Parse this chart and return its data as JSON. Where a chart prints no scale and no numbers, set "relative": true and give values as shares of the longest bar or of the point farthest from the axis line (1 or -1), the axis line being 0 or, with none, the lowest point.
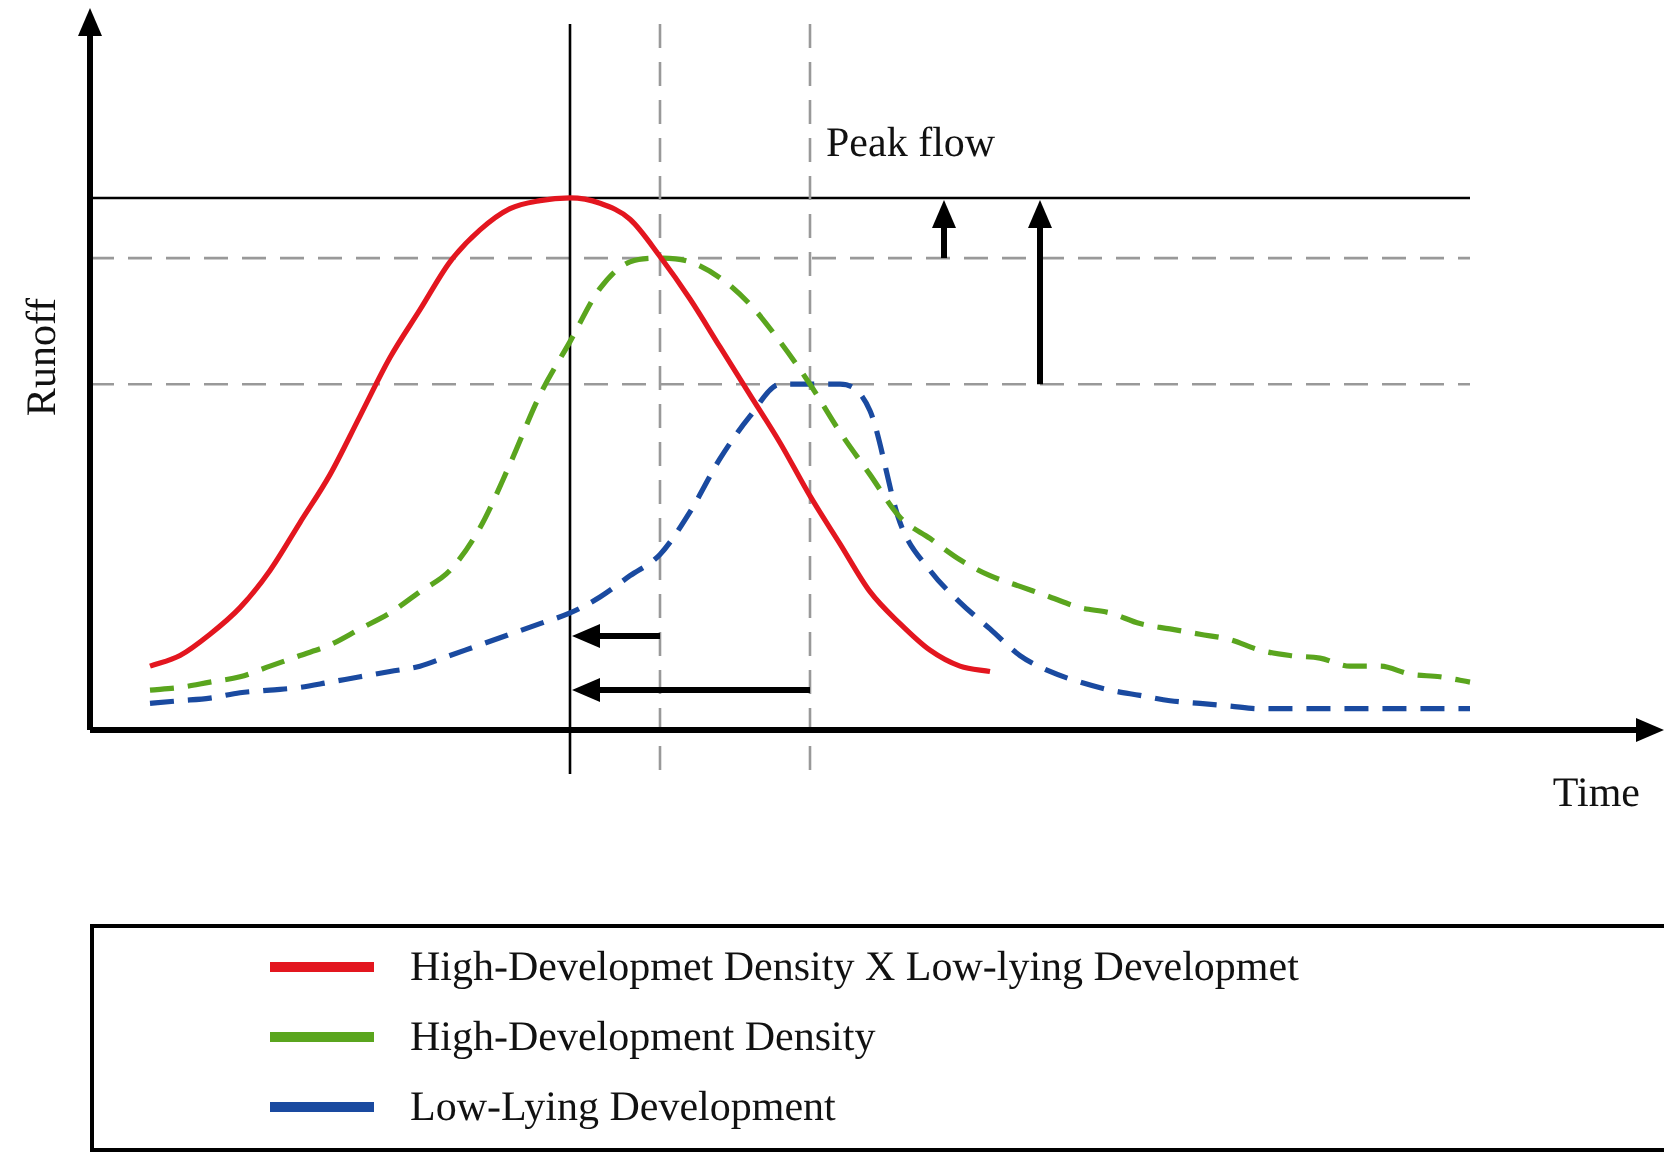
{
  "chart_data": {
    "type": "line",
    "relative": true,
    "xlabel": "Time",
    "ylabel": "Runoff",
    "annotations": [
      "Peak flow"
    ],
    "legend": "bottom",
    "grid": false,
    "marker": "none",
    "tick_labels": false,
    "categories": [
      null,
      null,
      null,
      null,
      null,
      null,
      null,
      null,
      null,
      null,
      null,
      null,
      null,
      null,
      null,
      null,
      null,
      null,
      null,
      null,
      null,
      null,
      null,
      null,
      null,
      null,
      null,
      null,
      null,
      null,
      null,
      null,
      null,
      null,
      null,
      null,
      null,
      null,
      null,
      null,
      null,
      null,
      null,
      null,
      null,
      null,
      null
    ],
    "series": [
      {
        "name": "High-Developmet Density X Low-lying Developmet",
        "color": "#e3161f",
        "line_style": "solid",
        "values": [
          null,
          null,
          0.12,
          0.14,
          0.18,
          0.23,
          0.3,
          0.39,
          0.48,
          0.59,
          0.7,
          0.79,
          0.88,
          0.94,
          0.98,
          0.995,
          1.0,
          0.99,
          0.96,
          0.89,
          0.81,
          0.72,
          0.63,
          0.54,
          0.44,
          0.35,
          0.26,
          0.2,
          0.15,
          0.12,
          0.11,
          null,
          null,
          null,
          null,
          null,
          null,
          null,
          null,
          null,
          null,
          null,
          null,
          null,
          null,
          null,
          null
        ]
      },
      {
        "name": "High-Development Density",
        "color": "#5aa51e",
        "line_style": "dashed",
        "values": [
          null,
          null,
          0.075,
          0.08,
          0.09,
          0.1,
          0.12,
          0.14,
          0.16,
          0.19,
          0.22,
          0.26,
          0.3,
          0.38,
          0.5,
          0.63,
          0.73,
          0.83,
          0.88,
          0.887,
          0.88,
          0.85,
          0.8,
          0.73,
          0.65,
          0.56,
          0.48,
          0.4,
          0.36,
          0.32,
          0.29,
          0.27,
          0.25,
          0.23,
          0.22,
          0.2,
          0.19,
          0.18,
          0.17,
          0.15,
          0.14,
          0.135,
          0.12,
          0.12,
          0.105,
          0.1,
          0.09
        ]
      },
      {
        "name": "Low-Lying Development",
        "color": "#1a4aa0",
        "line_style": "dashed",
        "values": [
          null,
          null,
          0.05,
          0.055,
          0.06,
          0.07,
          0.075,
          0.08,
          0.09,
          0.1,
          0.11,
          0.12,
          0.14,
          0.16,
          0.18,
          0.2,
          0.22,
          0.25,
          0.29,
          0.33,
          0.41,
          0.51,
          0.59,
          0.65,
          0.65,
          0.65,
          0.6,
          0.39,
          0.3,
          0.24,
          0.19,
          0.14,
          0.11,
          0.09,
          0.075,
          0.065,
          0.055,
          0.05,
          0.045,
          0.04,
          0.04,
          0.04,
          0.04,
          0.04,
          0.04,
          0.04,
          0.04
        ]
      }
    ],
    "ref_lines": [
      {
        "axis": "y",
        "value": 1.0,
        "color": "#000000",
        "line_style": "solid"
      },
      {
        "axis": "y",
        "value": 0.887,
        "color": "#999999",
        "line_style": "dashed"
      },
      {
        "axis": "y",
        "value": 0.65,
        "color": "#999999",
        "line_style": "dashed"
      }
    ]
  }
}
